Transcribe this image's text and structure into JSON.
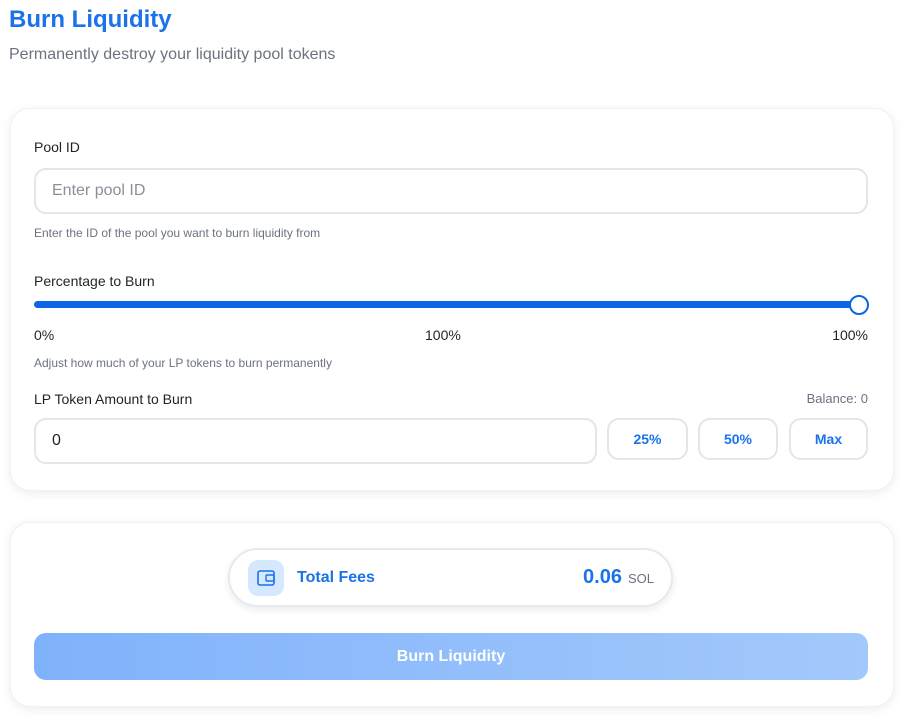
{
  "header": {
    "title": "Burn Liquidity",
    "subtitle": "Permanently destroy your liquidity pool tokens"
  },
  "form": {
    "pool_id": {
      "label": "Pool ID",
      "placeholder": "Enter pool ID",
      "help": "Enter the ID of the pool you want to burn liquidity from"
    },
    "percentage": {
      "label": "Percentage to Burn",
      "min_label": "0%",
      "current_label": "100%",
      "max_label": "100%",
      "help": "Adjust how much of your LP tokens to burn permanently"
    },
    "amount": {
      "label": "LP Token Amount to Burn",
      "balance": "Balance: 0",
      "value": "0",
      "buttons": [
        "25%",
        "50%",
        "Max"
      ]
    }
  },
  "fees": {
    "label": "Total Fees",
    "amount": "0.06",
    "unit": "SOL"
  },
  "submit": {
    "label": "Burn Liquidity"
  }
}
